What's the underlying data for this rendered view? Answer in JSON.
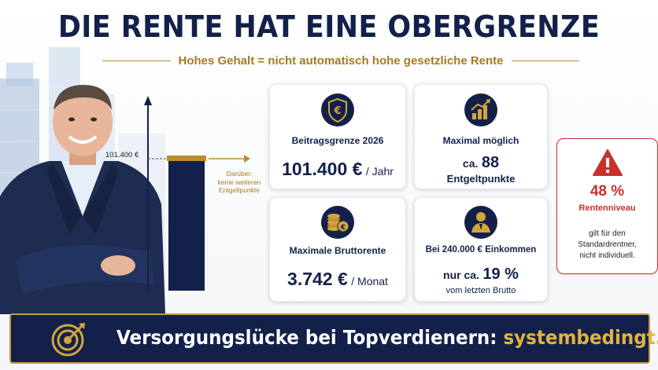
{
  "header": {
    "title": "DIE RENTE HAT EINE OBERGRENZE",
    "subtitle": "Hohes Gehalt = nicht automatisch hohe gesetzliche Rente"
  },
  "chart": {
    "limit_label": "101.400 €",
    "note": [
      "Darüber:",
      "keine weiteren",
      "Entgeltpunkte"
    ]
  },
  "cards": {
    "beitragsgrenze": {
      "title": "Beitragsgrenze 2026",
      "value": "101.400 €",
      "unit": "/ Jahr"
    },
    "maximal": {
      "title": "Maximal möglich",
      "prefix": "ca.",
      "value": "88",
      "unit": "Entgeltpunkte"
    },
    "bruttorente": {
      "title": "Maximale Bruttorente",
      "value": "3.742 €",
      "unit": "/ Monat"
    },
    "einkommen": {
      "title": "Bei 240.000 € Einkommen",
      "prefix": "nur ca.",
      "value": "19 %",
      "unit": "vom letzten Brutto"
    }
  },
  "warning": {
    "percent": "48 %",
    "label": "Rentenniveau",
    "note": [
      "gilt für den",
      "Standardrentner,",
      "nicht individuell."
    ]
  },
  "banner": {
    "text": "Versorgungslücke bei Topverdienern: ",
    "accent": "systembedingt."
  },
  "colors": {
    "navy": "#13214a",
    "gold": "#c49a3a",
    "red": "#c9302c"
  }
}
